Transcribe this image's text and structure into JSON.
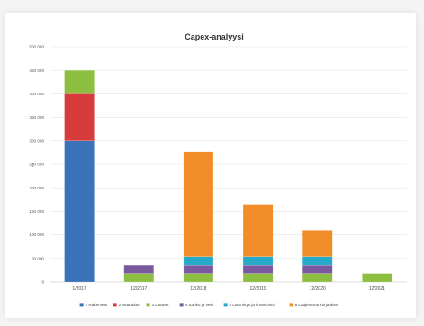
{
  "chart_data": {
    "type": "bar",
    "stacked": true,
    "title": "Capex-analyysi",
    "ylabel": "€",
    "xlabel": "",
    "ylim": [
      0,
      500000
    ],
    "yticks": [
      0,
      50000,
      100000,
      150000,
      200000,
      250000,
      300000,
      350000,
      400000,
      450000,
      500000
    ],
    "ytick_labels": [
      "0",
      "50 000",
      "100 000",
      "150 000",
      "200 000",
      "250 000",
      "300 000",
      "350 000",
      "400 000",
      "450 000",
      "500 000"
    ],
    "grid": true,
    "legend_position": "bottom",
    "categories": [
      "1/2017",
      "12/2017",
      "12/2018",
      "12/2019",
      "12/2020",
      "12/2021"
    ],
    "series": [
      {
        "name": "1 Rakennus",
        "color": "#3b73b9",
        "values": [
          300000,
          0,
          0,
          0,
          0,
          0
        ]
      },
      {
        "name": "2 Maa-alue",
        "color": "#d63c3c",
        "values": [
          100000,
          0,
          0,
          0,
          0,
          0
        ]
      },
      {
        "name": "3 Laitteet",
        "color": "#8cbf3f",
        "values": [
          50000,
          18000,
          18000,
          18000,
          18000,
          18000
        ]
      },
      {
        "name": "4 Sähkö ja vesi",
        "color": "#7a5a9e",
        "values": [
          0,
          18000,
          18000,
          18000,
          18000,
          0
        ]
      },
      {
        "name": "5 Lämmitys ja ilmastointi",
        "color": "#27a9c9",
        "values": [
          0,
          0,
          18000,
          18000,
          18000,
          0
        ]
      },
      {
        "name": "6 Laajemmat korjaukset",
        "color": "#f28c28",
        "values": [
          0,
          0,
          223000,
          111000,
          56000,
          0
        ]
      }
    ]
  }
}
